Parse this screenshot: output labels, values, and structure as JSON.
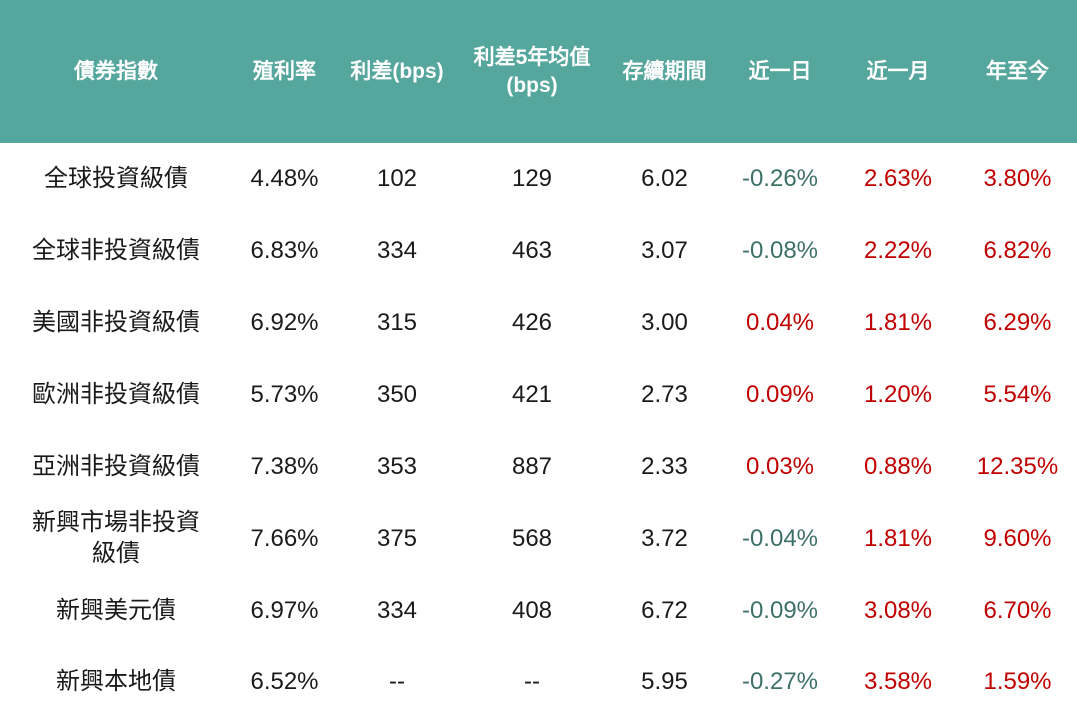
{
  "colors": {
    "header_bg": "#55a69c",
    "header_text": "#ffffff",
    "body_text": "#1a1a1a",
    "positive_red": "#c00000",
    "negative_teal": "#3d7168"
  },
  "chart_data": {
    "type": "table",
    "columns": [
      {
        "key": "index_name",
        "label": "債券指數"
      },
      {
        "key": "yield",
        "label": "殖利率"
      },
      {
        "key": "spread_bps",
        "label": "利差(bps)"
      },
      {
        "key": "spread_5y_avg_bps",
        "label": "利差5年均值(bps)"
      },
      {
        "key": "duration",
        "label": "存續期間"
      },
      {
        "key": "change_1d",
        "label": "近一日"
      },
      {
        "key": "change_1m",
        "label": "近一月"
      },
      {
        "key": "change_ytd",
        "label": "年至今"
      }
    ],
    "rows": [
      [
        "全球投資級債",
        "4.48%",
        "102",
        "129",
        "6.02",
        "-0.26%",
        "2.63%",
        "3.80%"
      ],
      [
        "全球非投資級債",
        "6.83%",
        "334",
        "463",
        "3.07",
        "-0.08%",
        "2.22%",
        "6.82%"
      ],
      [
        "美國非投資級債",
        "6.92%",
        "315",
        "426",
        "3.00",
        "0.04%",
        "1.81%",
        "6.29%"
      ],
      [
        "歐洲非投資級債",
        "5.73%",
        "350",
        "421",
        "2.73",
        "0.09%",
        "1.20%",
        "5.54%"
      ],
      [
        "亞洲非投資級債",
        "7.38%",
        "353",
        "887",
        "2.33",
        "0.03%",
        "0.88%",
        "12.35%"
      ],
      [
        "新興市場非投資級債",
        "7.66%",
        "375",
        "568",
        "3.72",
        "-0.04%",
        "1.81%",
        "9.60%"
      ],
      [
        "新興美元債",
        "6.97%",
        "334",
        "408",
        "6.72",
        "-0.09%",
        "3.08%",
        "6.70%"
      ],
      [
        "新興本地債",
        "6.52%",
        "--",
        "--",
        "5.95",
        "-0.27%",
        "3.58%",
        "1.59%"
      ]
    ]
  }
}
